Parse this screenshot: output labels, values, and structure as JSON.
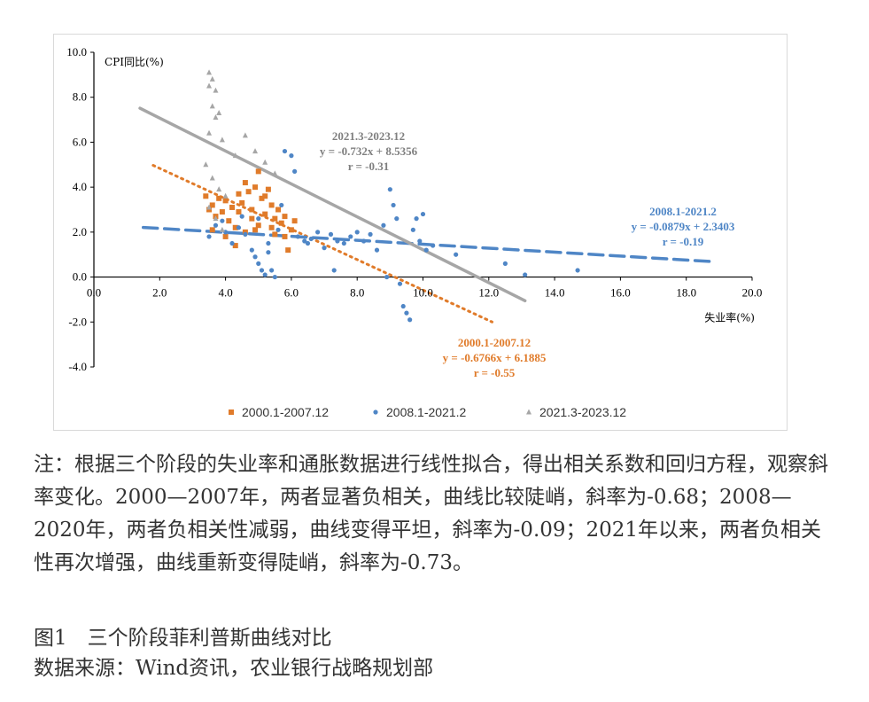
{
  "chart_data": {
    "type": "scatter",
    "xlabel": "失业率(%)",
    "ylabel": "CPI同比(%)",
    "xlim": [
      0,
      20
    ],
    "ylim": [
      -4,
      10
    ],
    "x_ticks": [
      "0.0",
      "2.0",
      "4.0",
      "6.0",
      "8.0",
      "10.0",
      "12.0",
      "14.0",
      "16.0",
      "18.0",
      "20.0"
    ],
    "y_ticks": [
      "10.0",
      "8.0",
      "6.0",
      "4.0",
      "2.0",
      "0.0",
      "-2.0",
      "-4.0"
    ],
    "legend_position": "bottom",
    "series": [
      {
        "name": "2000.1-2007.12",
        "marker": "square",
        "color": "#e07b2a",
        "points": [
          [
            3.4,
            3.6
          ],
          [
            3.5,
            3.0
          ],
          [
            3.6,
            3.2
          ],
          [
            3.7,
            2.7
          ],
          [
            3.8,
            3.5
          ],
          [
            3.9,
            2.9
          ],
          [
            4.0,
            3.4
          ],
          [
            4.1,
            2.5
          ],
          [
            4.2,
            3.1
          ],
          [
            4.3,
            2.2
          ],
          [
            4.4,
            2.9
          ],
          [
            4.5,
            3.3
          ],
          [
            4.6,
            4.2
          ],
          [
            4.7,
            3.8
          ],
          [
            4.8,
            2.6
          ],
          [
            4.9,
            4.0
          ],
          [
            5.0,
            4.7
          ],
          [
            5.1,
            3.5
          ],
          [
            5.2,
            2.8
          ],
          [
            5.3,
            3.9
          ],
          [
            5.4,
            3.2
          ],
          [
            5.5,
            2.6
          ],
          [
            5.6,
            3.0
          ],
          [
            5.7,
            2.4
          ],
          [
            5.8,
            1.8
          ],
          [
            5.9,
            1.2
          ],
          [
            6.0,
            2.1
          ],
          [
            6.1,
            2.5
          ],
          [
            4.3,
            1.4
          ],
          [
            4.6,
            2.0
          ],
          [
            5.0,
            2.3
          ],
          [
            5.5,
            1.9
          ],
          [
            3.6,
            2.1
          ],
          [
            4.0,
            1.8
          ],
          [
            4.8,
            3.0
          ],
          [
            5.2,
            3.6
          ],
          [
            5.8,
            2.7
          ],
          [
            4.4,
            3.7
          ],
          [
            4.9,
            2.1
          ],
          [
            5.4,
            2.2
          ]
        ],
        "trend": {
          "equation": "y = -0.6766x + 6.1885",
          "r": "r = -0.55",
          "period": "2000.1-2007.12",
          "slope": -0.6766,
          "intercept": 6.1885,
          "x_range": [
            1.8,
            12.1
          ]
        }
      },
      {
        "name": "2008.1-2021.2",
        "marker": "circle",
        "color": "#4f86c6",
        "points": [
          [
            3.5,
            1.8
          ],
          [
            3.7,
            2.3
          ],
          [
            3.9,
            2.5
          ],
          [
            4.0,
            2.0
          ],
          [
            4.2,
            1.5
          ],
          [
            4.4,
            2.2
          ],
          [
            4.6,
            1.9
          ],
          [
            4.8,
            1.2
          ],
          [
            4.9,
            0.9
          ],
          [
            5.0,
            0.6
          ],
          [
            5.1,
            0.3
          ],
          [
            5.2,
            0.1
          ],
          [
            5.3,
            1.1
          ],
          [
            5.4,
            0.3
          ],
          [
            5.5,
            0.0
          ],
          [
            5.6,
            2.1
          ],
          [
            5.7,
            3.2
          ],
          [
            5.8,
            5.6
          ],
          [
            6.0,
            5.4
          ],
          [
            6.1,
            4.7
          ],
          [
            6.2,
            1.8
          ],
          [
            6.4,
            1.6
          ],
          [
            6.6,
            1.7
          ],
          [
            6.8,
            2.0
          ],
          [
            7.0,
            1.3
          ],
          [
            7.2,
            1.9
          ],
          [
            7.4,
            1.6
          ],
          [
            7.6,
            1.5
          ],
          [
            7.8,
            1.8
          ],
          [
            8.0,
            2.0
          ],
          [
            8.2,
            1.6
          ],
          [
            8.4,
            1.9
          ],
          [
            8.6,
            1.2
          ],
          [
            8.8,
            2.3
          ],
          [
            9.0,
            3.9
          ],
          [
            9.1,
            3.2
          ],
          [
            9.2,
            2.6
          ],
          [
            9.3,
            -0.3
          ],
          [
            9.4,
            -1.3
          ],
          [
            9.5,
            -1.6
          ],
          [
            9.6,
            -1.9
          ],
          [
            9.7,
            2.1
          ],
          [
            9.8,
            2.6
          ],
          [
            9.9,
            1.6
          ],
          [
            10.0,
            2.8
          ],
          [
            10.1,
            1.2
          ],
          [
            10.3,
            1.4
          ],
          [
            11.0,
            1.0
          ],
          [
            12.5,
            0.6
          ],
          [
            13.1,
            0.1
          ],
          [
            14.7,
            0.3
          ],
          [
            5.0,
            2.6
          ],
          [
            5.3,
            1.5
          ],
          [
            4.5,
            2.7
          ],
          [
            6.5,
            1.5
          ],
          [
            7.3,
            0.3
          ],
          [
            8.9,
            0.0
          ]
        ],
        "trend": {
          "equation": "y = -0.0879x + 2.3403",
          "r": "r = -0.19",
          "period": "2008.1-2021.2",
          "slope": -0.0879,
          "intercept": 2.3403,
          "x_range": [
            1.5,
            18.8
          ]
        }
      },
      {
        "name": "2021.3-2023.12",
        "marker": "triangle",
        "color": "#a6a6a6",
        "points": [
          [
            3.5,
            9.1
          ],
          [
            3.6,
            8.8
          ],
          [
            3.5,
            8.5
          ],
          [
            3.7,
            8.3
          ],
          [
            3.6,
            7.6
          ],
          [
            3.8,
            7.3
          ],
          [
            3.7,
            7.1
          ],
          [
            3.5,
            6.4
          ],
          [
            3.9,
            6.1
          ],
          [
            3.4,
            5.0
          ],
          [
            3.6,
            4.4
          ],
          [
            3.8,
            3.9
          ],
          [
            4.0,
            3.6
          ],
          [
            4.3,
            5.4
          ],
          [
            4.6,
            6.3
          ],
          [
            4.9,
            5.6
          ],
          [
            5.2,
            5.1
          ],
          [
            5.5,
            4.6
          ],
          [
            3.5,
            3.1
          ],
          [
            3.7,
            2.6
          ],
          [
            3.9,
            2.1
          ]
        ],
        "trend": {
          "equation": "y = -0.732x + 8.5356",
          "r": "r = -0.31",
          "period": "2021.3-2023.12",
          "slope": -0.732,
          "intercept": 8.5356,
          "x_range": [
            1.4,
            13.1
          ]
        }
      }
    ]
  },
  "note": "注：根据三个阶段的失业率和通胀数据进行线性拟合，得出相关系数和回归方程，观察斜率变化。2000—2007年，两者显著负相关，曲线比较陡峭，斜率为-0.68；2008—2020年，两者负相关性减弱，曲线变得平坦，斜率为-0.09；2021年以来，两者负相关性再次增强，曲线重新变得陡峭，斜率为-0.73。",
  "caption": "图1　三个阶段菲利普斯曲线对比",
  "source": "数据来源：Wind资讯，农业银行战略规划部"
}
